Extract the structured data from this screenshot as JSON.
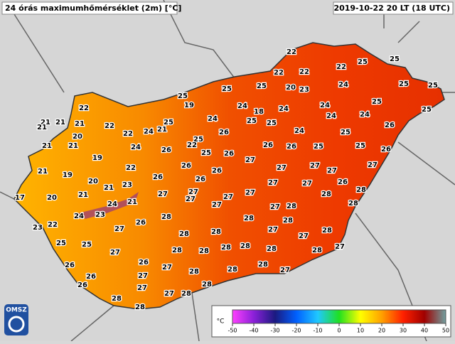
{
  "title": "24 órás maximumhőmérséklet (2m) [°C]",
  "timestamp": "2019-10-22 20 LT (18 UTC)",
  "logo": "OMSZ",
  "stations": [
    22,
    25,
    25,
    22,
    22,
    22,
    25,
    25,
    20,
    23,
    24,
    25,
    25,
    25,
    19,
    24,
    18,
    24,
    24,
    25,
    25,
    22,
    21,
    21,
    21,
    21,
    22,
    22,
    25,
    21,
    24,
    24,
    25,
    25,
    24,
    24,
    26,
    20,
    25,
    22,
    26,
    24,
    25,
    21,
    21,
    24,
    26,
    25,
    26,
    26,
    26,
    25,
    25,
    26,
    19,
    27,
    21,
    19,
    20,
    22,
    26,
    26,
    26,
    27,
    27,
    27,
    27,
    21,
    23,
    17,
    20,
    21,
    27,
    27,
    26,
    27,
    27,
    27,
    27,
    26,
    28,
    27,
    24,
    21,
    28,
    24,
    23,
    27,
    28,
    27,
    28,
    28,
    22,
    23,
    26,
    27,
    28,
    28,
    28,
    27,
    28,
    27,
    28,
    25,
    25,
    27,
    28,
    28,
    28,
    28,
    28,
    28,
    27,
    26,
    26,
    27,
    28,
    28,
    28,
    27,
    26,
    27,
    26,
    28,
    27,
    27,
    28,
    28,
    28
  ],
  "colorbar": {
    "unit": "°C",
    "ticks": [
      -50,
      -40,
      -30,
      -20,
      -10,
      0,
      10,
      20,
      30,
      40,
      50
    ],
    "colors": [
      "#ff40ff",
      "#8a20d8",
      "#1a1a80",
      "#0060ff",
      "#20c8ff",
      "#20e020",
      "#ffff00",
      "#ffa000",
      "#ff2000",
      "#a00000",
      "#70a0a0"
    ]
  }
}
